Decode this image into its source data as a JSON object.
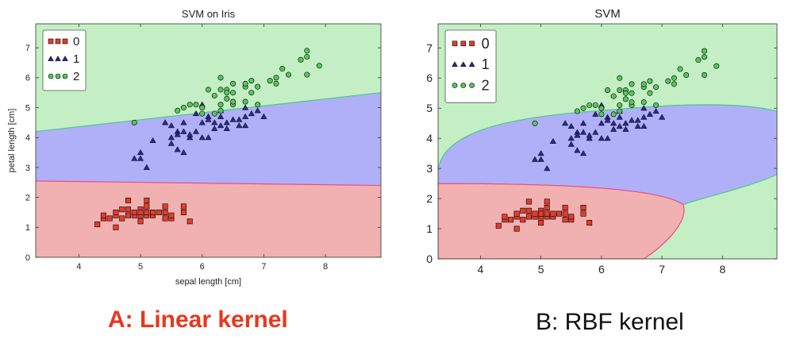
{
  "colors": {
    "region_0": "#f2b1b1",
    "region_1": "#b0b0f8",
    "region_2": "#c4efc4",
    "boundary_lines": [
      "#f04a86",
      "#6a6af5",
      "#4fc690"
    ],
    "marker_0": "#e63b2a",
    "marker_1": "#2a2a8c",
    "marker_2": "#55c85a",
    "caption_a": "#e8371d",
    "caption_b": "#111111"
  },
  "chart_data": [
    {
      "type": "scatter",
      "title": "SVM on Iris",
      "xlabel": "sepal length [cm]",
      "ylabel": "petal length [cm]",
      "xlim": [
        3.3,
        8.9
      ],
      "ylim": [
        0,
        7.8
      ],
      "xticks": [
        4,
        5,
        6,
        7,
        8
      ],
      "yticks": [
        0,
        1,
        2,
        3,
        4,
        5,
        6,
        7
      ],
      "grid": false,
      "legend": {
        "placement": "top-left",
        "entries": [
          "0",
          "1",
          "2"
        ]
      },
      "regions": "linear",
      "decision_boundaries": [
        {
          "between": [
            "0",
            "1"
          ],
          "x": [
            3.3,
            8.9
          ],
          "y": [
            2.55,
            2.4
          ]
        },
        {
          "between": [
            "1",
            "2"
          ],
          "x": [
            3.3,
            8.9
          ],
          "y": [
            4.2,
            5.5
          ]
        }
      ],
      "series": [
        {
          "name": "0",
          "marker": "square",
          "points": [
            [
              4.3,
              1.1
            ],
            [
              4.4,
              1.3
            ],
            [
              4.4,
              1.4
            ],
            [
              4.5,
              1.3
            ],
            [
              4.6,
              1.4
            ],
            [
              4.6,
              1.0
            ],
            [
              4.6,
              1.5
            ],
            [
              4.7,
              1.3
            ],
            [
              4.7,
              1.6
            ],
            [
              4.8,
              1.6
            ],
            [
              4.8,
              1.4
            ],
            [
              4.8,
              1.9
            ],
            [
              4.9,
              1.4
            ],
            [
              4.9,
              1.5
            ],
            [
              5.0,
              1.2
            ],
            [
              5.0,
              1.4
            ],
            [
              5.0,
              1.6
            ],
            [
              5.0,
              1.5
            ],
            [
              5.1,
              1.4
            ],
            [
              5.1,
              1.5
            ],
            [
              5.1,
              1.7
            ],
            [
              5.1,
              1.9
            ],
            [
              5.2,
              1.4
            ],
            [
              5.2,
              1.5
            ],
            [
              5.3,
              1.5
            ],
            [
              5.4,
              1.3
            ],
            [
              5.4,
              1.5
            ],
            [
              5.4,
              1.7
            ],
            [
              5.5,
              1.3
            ],
            [
              5.5,
              1.4
            ],
            [
              5.7,
              1.5
            ],
            [
              5.7,
              1.7
            ],
            [
              5.8,
              1.2
            ]
          ]
        },
        {
          "name": "1",
          "marker": "triangle",
          "points": [
            [
              4.9,
              3.3
            ],
            [
              5.0,
              3.5
            ],
            [
              5.0,
              3.3
            ],
            [
              5.1,
              3.0
            ],
            [
              5.2,
              3.9
            ],
            [
              5.4,
              4.5
            ],
            [
              5.5,
              4.0
            ],
            [
              5.5,
              3.8
            ],
            [
              5.5,
              4.4
            ],
            [
              5.6,
              3.6
            ],
            [
              5.6,
              4.2
            ],
            [
              5.6,
              4.1
            ],
            [
              5.7,
              3.5
            ],
            [
              5.7,
              4.2
            ],
            [
              5.7,
              4.5
            ],
            [
              5.8,
              4.0
            ],
            [
              5.8,
              4.1
            ],
            [
              5.9,
              4.8
            ],
            [
              5.9,
              4.2
            ],
            [
              6.0,
              4.5
            ],
            [
              6.0,
              4.0
            ],
            [
              6.0,
              5.1
            ],
            [
              6.1,
              4.7
            ],
            [
              6.1,
              4.0
            ],
            [
              6.1,
              4.6
            ],
            [
              6.2,
              4.5
            ],
            [
              6.2,
              4.3
            ],
            [
              6.3,
              4.7
            ],
            [
              6.3,
              4.4
            ],
            [
              6.3,
              4.9
            ],
            [
              6.4,
              4.5
            ],
            [
              6.4,
              4.3
            ],
            [
              6.5,
              4.6
            ],
            [
              6.6,
              4.4
            ],
            [
              6.6,
              4.6
            ],
            [
              6.7,
              4.4
            ],
            [
              6.7,
              5.0
            ],
            [
              6.7,
              4.7
            ],
            [
              6.8,
              4.8
            ],
            [
              6.9,
              4.9
            ],
            [
              7.0,
              4.7
            ]
          ]
        },
        {
          "name": "2",
          "marker": "circle",
          "points": [
            [
              4.9,
              4.5
            ],
            [
              5.6,
              4.9
            ],
            [
              5.7,
              5.0
            ],
            [
              5.8,
              5.1
            ],
            [
              5.9,
              5.1
            ],
            [
              6.0,
              4.8
            ],
            [
              6.0,
              5.0
            ],
            [
              6.1,
              5.6
            ],
            [
              6.2,
              4.8
            ],
            [
              6.2,
              5.4
            ],
            [
              6.3,
              6.0
            ],
            [
              6.3,
              5.1
            ],
            [
              6.3,
              5.6
            ],
            [
              6.3,
              4.9
            ],
            [
              6.4,
              5.3
            ],
            [
              6.4,
              5.6
            ],
            [
              6.4,
              5.5
            ],
            [
              6.5,
              5.1
            ],
            [
              6.5,
              5.8
            ],
            [
              6.5,
              5.5
            ],
            [
              6.5,
              5.2
            ],
            [
              6.7,
              5.7
            ],
            [
              6.7,
              5.8
            ],
            [
              6.7,
              5.2
            ],
            [
              6.8,
              5.5
            ],
            [
              6.8,
              5.9
            ],
            [
              6.9,
              5.7
            ],
            [
              6.9,
              5.1
            ],
            [
              7.1,
              5.9
            ],
            [
              7.2,
              6.0
            ],
            [
              7.2,
              5.8
            ],
            [
              7.3,
              6.3
            ],
            [
              7.4,
              6.1
            ],
            [
              7.6,
              6.6
            ],
            [
              7.7,
              6.7
            ],
            [
              7.7,
              6.9
            ],
            [
              7.7,
              6.1
            ],
            [
              7.9,
              6.4
            ]
          ]
        }
      ]
    },
    {
      "type": "scatter",
      "title": "SVM",
      "xlabel": "",
      "ylabel": "",
      "xlim": [
        3.3,
        8.9
      ],
      "ylim": [
        0,
        7.8
      ],
      "xticks": [
        4,
        5,
        6,
        7,
        8
      ],
      "yticks": [
        0,
        1,
        2,
        3,
        4,
        5,
        6,
        7
      ],
      "grid": false,
      "legend": {
        "placement": "top-left",
        "entries": [
          "0",
          "1",
          "2"
        ]
      },
      "regions": "rbf",
      "decision_boundaries": [
        {
          "between": [
            "0",
            "1"
          ],
          "description": "closed curve around class 0 (lower-left)"
        },
        {
          "between": [
            "1",
            "2"
          ],
          "description": "curved band around class 1"
        }
      ],
      "series": [
        {
          "name": "0",
          "marker": "square",
          "points": [
            [
              4.3,
              1.1
            ],
            [
              4.4,
              1.3
            ],
            [
              4.4,
              1.4
            ],
            [
              4.5,
              1.3
            ],
            [
              4.6,
              1.4
            ],
            [
              4.6,
              1.0
            ],
            [
              4.6,
              1.5
            ],
            [
              4.7,
              1.3
            ],
            [
              4.7,
              1.6
            ],
            [
              4.8,
              1.6
            ],
            [
              4.8,
              1.4
            ],
            [
              4.8,
              1.9
            ],
            [
              4.9,
              1.4
            ],
            [
              4.9,
              1.5
            ],
            [
              5.0,
              1.2
            ],
            [
              5.0,
              1.4
            ],
            [
              5.0,
              1.6
            ],
            [
              5.0,
              1.5
            ],
            [
              5.1,
              1.4
            ],
            [
              5.1,
              1.5
            ],
            [
              5.1,
              1.7
            ],
            [
              5.1,
              1.9
            ],
            [
              5.2,
              1.4
            ],
            [
              5.2,
              1.5
            ],
            [
              5.3,
              1.5
            ],
            [
              5.4,
              1.3
            ],
            [
              5.4,
              1.5
            ],
            [
              5.4,
              1.7
            ],
            [
              5.5,
              1.3
            ],
            [
              5.5,
              1.4
            ],
            [
              5.7,
              1.5
            ],
            [
              5.7,
              1.7
            ],
            [
              5.8,
              1.2
            ]
          ]
        },
        {
          "name": "1",
          "marker": "triangle",
          "points": [
            [
              4.9,
              3.3
            ],
            [
              5.0,
              3.5
            ],
            [
              5.0,
              3.3
            ],
            [
              5.1,
              3.0
            ],
            [
              5.2,
              3.9
            ],
            [
              5.4,
              4.5
            ],
            [
              5.5,
              4.0
            ],
            [
              5.5,
              3.8
            ],
            [
              5.5,
              4.4
            ],
            [
              5.6,
              3.6
            ],
            [
              5.6,
              4.2
            ],
            [
              5.6,
              4.1
            ],
            [
              5.7,
              3.5
            ],
            [
              5.7,
              4.2
            ],
            [
              5.7,
              4.5
            ],
            [
              5.8,
              4.0
            ],
            [
              5.8,
              4.1
            ],
            [
              5.9,
              4.8
            ],
            [
              5.9,
              4.2
            ],
            [
              6.0,
              4.5
            ],
            [
              6.0,
              4.0
            ],
            [
              6.0,
              5.1
            ],
            [
              6.1,
              4.7
            ],
            [
              6.1,
              4.0
            ],
            [
              6.1,
              4.6
            ],
            [
              6.2,
              4.5
            ],
            [
              6.2,
              4.3
            ],
            [
              6.3,
              4.7
            ],
            [
              6.3,
              4.4
            ],
            [
              6.3,
              4.9
            ],
            [
              6.4,
              4.5
            ],
            [
              6.4,
              4.3
            ],
            [
              6.5,
              4.6
            ],
            [
              6.6,
              4.4
            ],
            [
              6.6,
              4.6
            ],
            [
              6.7,
              4.4
            ],
            [
              6.7,
              5.0
            ],
            [
              6.7,
              4.7
            ],
            [
              6.8,
              4.8
            ],
            [
              6.9,
              4.9
            ],
            [
              7.0,
              4.7
            ]
          ]
        },
        {
          "name": "2",
          "marker": "circle",
          "points": [
            [
              4.9,
              4.5
            ],
            [
              5.6,
              4.9
            ],
            [
              5.7,
              5.0
            ],
            [
              5.8,
              5.1
            ],
            [
              5.9,
              5.1
            ],
            [
              6.0,
              4.8
            ],
            [
              6.0,
              5.0
            ],
            [
              6.1,
              5.6
            ],
            [
              6.2,
              4.8
            ],
            [
              6.2,
              5.4
            ],
            [
              6.3,
              6.0
            ],
            [
              6.3,
              5.1
            ],
            [
              6.3,
              5.6
            ],
            [
              6.3,
              4.9
            ],
            [
              6.4,
              5.3
            ],
            [
              6.4,
              5.6
            ],
            [
              6.4,
              5.5
            ],
            [
              6.5,
              5.1
            ],
            [
              6.5,
              5.8
            ],
            [
              6.5,
              5.5
            ],
            [
              6.5,
              5.2
            ],
            [
              6.7,
              5.7
            ],
            [
              6.7,
              5.8
            ],
            [
              6.7,
              5.2
            ],
            [
              6.8,
              5.5
            ],
            [
              6.8,
              5.9
            ],
            [
              6.9,
              5.7
            ],
            [
              6.9,
              5.1
            ],
            [
              7.1,
              5.9
            ],
            [
              7.2,
              6.0
            ],
            [
              7.2,
              5.8
            ],
            [
              7.3,
              6.3
            ],
            [
              7.4,
              6.1
            ],
            [
              7.6,
              6.6
            ],
            [
              7.7,
              6.7
            ],
            [
              7.7,
              6.9
            ],
            [
              7.7,
              6.1
            ],
            [
              7.9,
              6.4
            ]
          ]
        }
      ]
    }
  ],
  "captions": {
    "a": "A: Linear kernel",
    "b": "B: RBF kernel"
  }
}
